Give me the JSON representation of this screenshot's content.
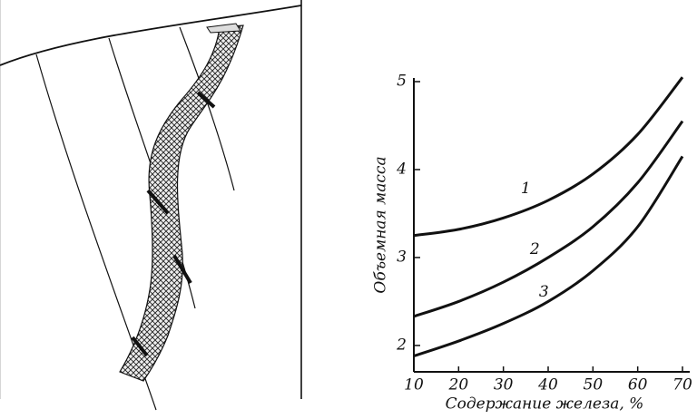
{
  "chart_data": {
    "type": "line",
    "y_label": "Объемная масса",
    "x_label": "Содержание железа, %",
    "x": [
      10,
      20,
      30,
      40,
      50,
      60,
      70
    ],
    "xlim": [
      10,
      70
    ],
    "xticks": [
      10,
      20,
      30,
      40,
      50,
      60,
      70
    ],
    "ylim": [
      1.7,
      5
    ],
    "yticks": [
      2,
      3,
      4,
      5
    ],
    "series": [
      {
        "name": "1",
        "color": "#111111",
        "values": [
          3.25,
          3.32,
          3.45,
          3.65,
          3.95,
          4.4,
          5.05
        ]
      },
      {
        "name": "2",
        "color": "#111111",
        "values": [
          2.33,
          2.5,
          2.72,
          3.0,
          3.35,
          3.85,
          4.55
        ]
      },
      {
        "name": "3",
        "color": "#111111",
        "values": [
          1.88,
          2.05,
          2.25,
          2.5,
          2.85,
          3.35,
          4.15
        ]
      }
    ]
  }
}
